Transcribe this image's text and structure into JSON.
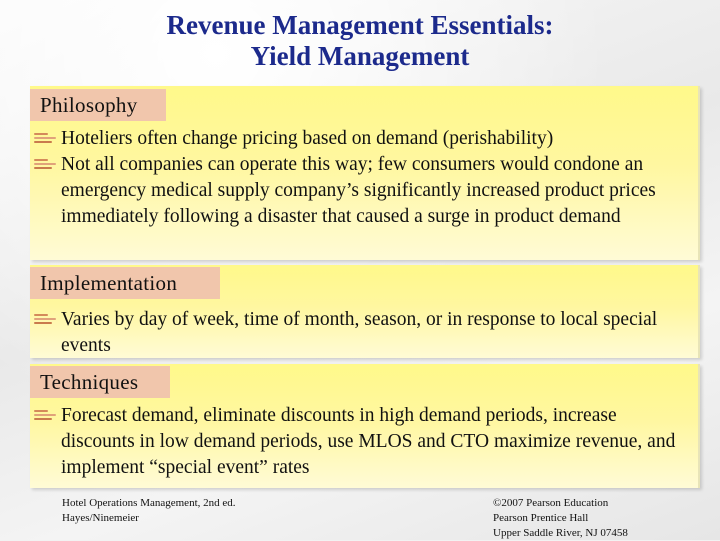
{
  "title": {
    "line1": "Revenue Management Essentials:",
    "line2": "Yield Management"
  },
  "sections": [
    {
      "heading": "Philosophy",
      "bullets": [
        "Hoteliers often change pricing based on demand (perishability)",
        "Not all companies can operate this way; few consumers would condone an emergency medical supply company’s significantly increased product prices immediately following a disaster that caused a surge in product demand"
      ]
    },
    {
      "heading": "Implementation",
      "bullets": [
        "Varies by day of week, time of month, season, or in response to local special events"
      ]
    },
    {
      "heading": "Techniques",
      "bullets": [
        "Forecast demand, eliminate discounts in high demand periods, increase discounts in low demand periods, use MLOS and CTO maximize revenue, and implement “special event” rates"
      ]
    }
  ],
  "footer": {
    "left": [
      "Hotel Operations Management, 2nd ed.",
      "Hayes/Ninemeier"
    ],
    "right": [
      "©2007 Pearson Education",
      "Pearson Prentice Hall",
      "Upper Saddle River, NJ 07458"
    ]
  },
  "colors": {
    "title": "#1c2a8c",
    "panel": "#fff98a",
    "heading_tab": "#f1c6ac",
    "bullet_icon": "#d48a5a"
  },
  "icons": {
    "bullet": "bullet-lines-icon"
  }
}
